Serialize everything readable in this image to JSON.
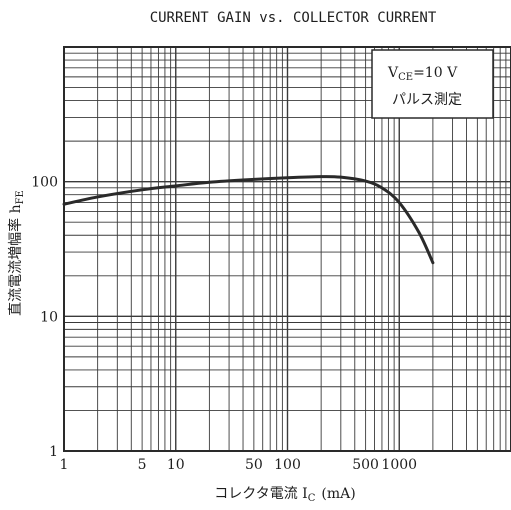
{
  "chart_data": {
    "type": "line",
    "title": "CURRENT GAIN vs. COLLECTOR CURRENT",
    "xlabel": "コレクタ電流 I",
    "xlabel_sub": "C",
    "xlabel_unit": "(mA)",
    "ylabel": "直流電流増幅率 h",
    "ylabel_sub": "FE",
    "x_scale": "log",
    "y_scale": "log",
    "xlim": [
      1,
      10000
    ],
    "ylim": [
      1,
      1000
    ],
    "grid": true,
    "x_tick_labels": [
      {
        "value": 1,
        "label": "1"
      },
      {
        "value": 5,
        "label": "5"
      },
      {
        "value": 10,
        "label": "10"
      },
      {
        "value": 50,
        "label": "50"
      },
      {
        "value": 100,
        "label": "100"
      },
      {
        "value": 500,
        "label": "500"
      },
      {
        "value": 1000,
        "label": "1000"
      }
    ],
    "y_tick_labels": [
      {
        "value": 1,
        "label": "1"
      },
      {
        "value": 10,
        "label": "10"
      },
      {
        "value": 100,
        "label": "100"
      }
    ],
    "annotation": {
      "line1_main": "V",
      "line1_sub": "CE",
      "line1_rest": "=10 V",
      "line2": "パルス測定"
    },
    "series": [
      {
        "x": [
          1,
          2,
          5,
          10,
          20,
          50,
          100,
          200,
          300,
          500,
          700,
          1000,
          1500,
          2000
        ],
        "y": [
          68,
          77,
          87,
          93,
          99,
          104,
          107,
          109,
          108,
          101,
          90,
          70,
          42,
          25
        ]
      }
    ],
    "colors": {
      "line": "#2a2a2a",
      "grid": "#3a3a3a",
      "frame": "#2a2a2a"
    }
  }
}
